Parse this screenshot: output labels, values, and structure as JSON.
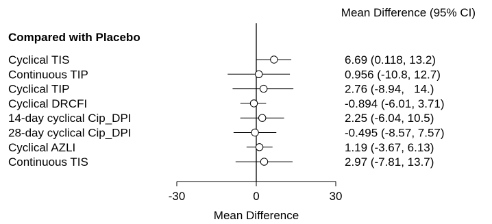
{
  "chart_data": {
    "type": "forest",
    "header": "Mean Difference (95% CI)",
    "group_label": "Compared with Placebo",
    "xlabel": "Mean Difference",
    "xlim": [
      -30,
      30
    ],
    "x_ticks": [
      -30,
      0,
      30
    ],
    "x_tick_labels": [
      "-30",
      "0",
      "30"
    ],
    "reference_line": 0,
    "rows": [
      {
        "label": "Cyclical TIS",
        "estimate": 6.69,
        "lower": 0.118,
        "upper": 13.2,
        "ci_text": "6.69 (0.118, 13.2)"
      },
      {
        "label": "Continuous TIP",
        "estimate": 0.956,
        "lower": -10.8,
        "upper": 12.7,
        "ci_text": "0.956 (-10.8, 12.7)"
      },
      {
        "label": "Cyclical TIP",
        "estimate": 2.76,
        "lower": -8.94,
        "upper": 14.0,
        "ci_text": "2.76 (-8.94,   14.)"
      },
      {
        "label": "Cyclical DRCFI",
        "estimate": -0.894,
        "lower": -6.01,
        "upper": 3.71,
        "ci_text": "-0.894 (-6.01, 3.71)"
      },
      {
        "label": "14-day cyclical Cip_DPI",
        "estimate": 2.25,
        "lower": -6.04,
        "upper": 10.5,
        "ci_text": "2.25 (-6.04, 10.5)"
      },
      {
        "label": "28-day cyclical Cip_DPI",
        "estimate": -0.495,
        "lower": -8.57,
        "upper": 7.57,
        "ci_text": "-0.495 (-8.57, 7.57)"
      },
      {
        "label": "Cyclical AZLI",
        "estimate": 1.19,
        "lower": -3.67,
        "upper": 6.13,
        "ci_text": "1.19 (-3.67, 6.13)"
      },
      {
        "label": "Continuous TIS",
        "estimate": 2.97,
        "lower": -7.81,
        "upper": 13.7,
        "ci_text": "2.97 (-7.81, 13.7)"
      }
    ]
  }
}
